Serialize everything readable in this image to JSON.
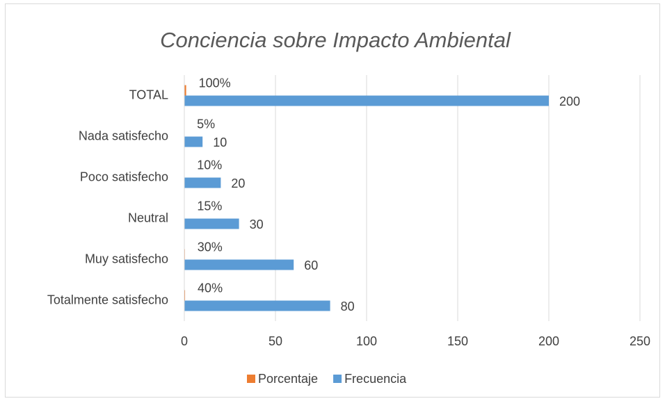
{
  "chart_data": {
    "type": "hbar",
    "title": "Conciencia sobre Impacto Ambiental",
    "categories": [
      "Totalmente satisfecho",
      "Muy satisfecho",
      "Neutral",
      "Poco satisfecho",
      "Nada satisfecho",
      "TOTAL"
    ],
    "series": [
      {
        "name": "Porcentaje",
        "color": "#ed7d31",
        "values": [
          0.4,
          0.3,
          0.15,
          0.1,
          0.05,
          1
        ],
        "value_labels": [
          "40%",
          "30%",
          "15%",
          "10%",
          "5%",
          "100%"
        ]
      },
      {
        "name": "Frecuencia",
        "color": "#5b9bd5",
        "values": [
          80,
          60,
          30,
          20,
          10,
          200
        ]
      }
    ],
    "xlim": [
      0,
      250
    ],
    "xticks": [
      0,
      50,
      100,
      150,
      200,
      250
    ],
    "grid": true,
    "legend": "bottom"
  }
}
